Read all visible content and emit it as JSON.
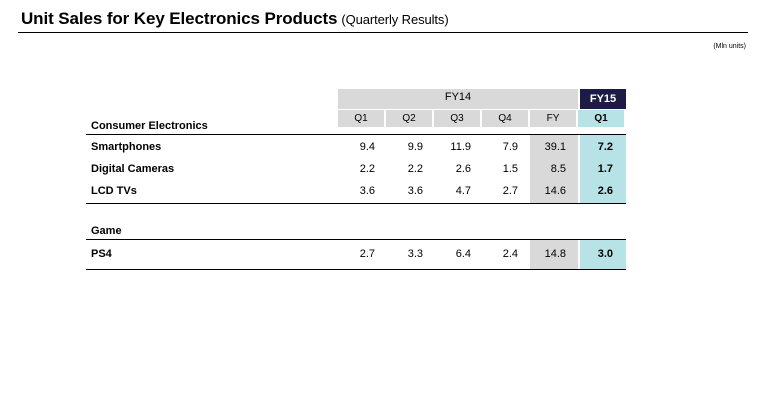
{
  "title": "Unit Sales for Key Electronics Products",
  "subtitle": "(Quarterly Results)",
  "units": "(Mln units)",
  "header": {
    "fy14": "FY14",
    "fy15": "FY15",
    "columns": [
      "Q1",
      "Q2",
      "Q3",
      "Q4",
      "FY",
      "Q1"
    ]
  },
  "sections": [
    {
      "label": "Consumer Electronics",
      "rows": [
        {
          "label": "Smartphones",
          "values": [
            "9.4",
            "9.9",
            "11.9",
            "7.9",
            "39.1",
            "7.2"
          ]
        },
        {
          "label": "Digital Cameras",
          "values": [
            "2.2",
            "2.2",
            "2.6",
            "1.5",
            "8.5",
            "1.7"
          ]
        },
        {
          "label": "LCD TVs",
          "values": [
            "3.6",
            "3.6",
            "4.7",
            "2.7",
            "14.6",
            "2.6"
          ]
        }
      ]
    },
    {
      "label": "Game",
      "rows": [
        {
          "label": "PS4",
          "values": [
            "2.7",
            "3.3",
            "6.4",
            "2.4",
            "14.8",
            "3.0"
          ]
        }
      ]
    }
  ],
  "colors": {
    "fy14_header": "#d9d9d9",
    "fy15_header": "#1b1b46",
    "fy15_column": "#b8e3e6",
    "fy_column": "#d9d9d9"
  }
}
